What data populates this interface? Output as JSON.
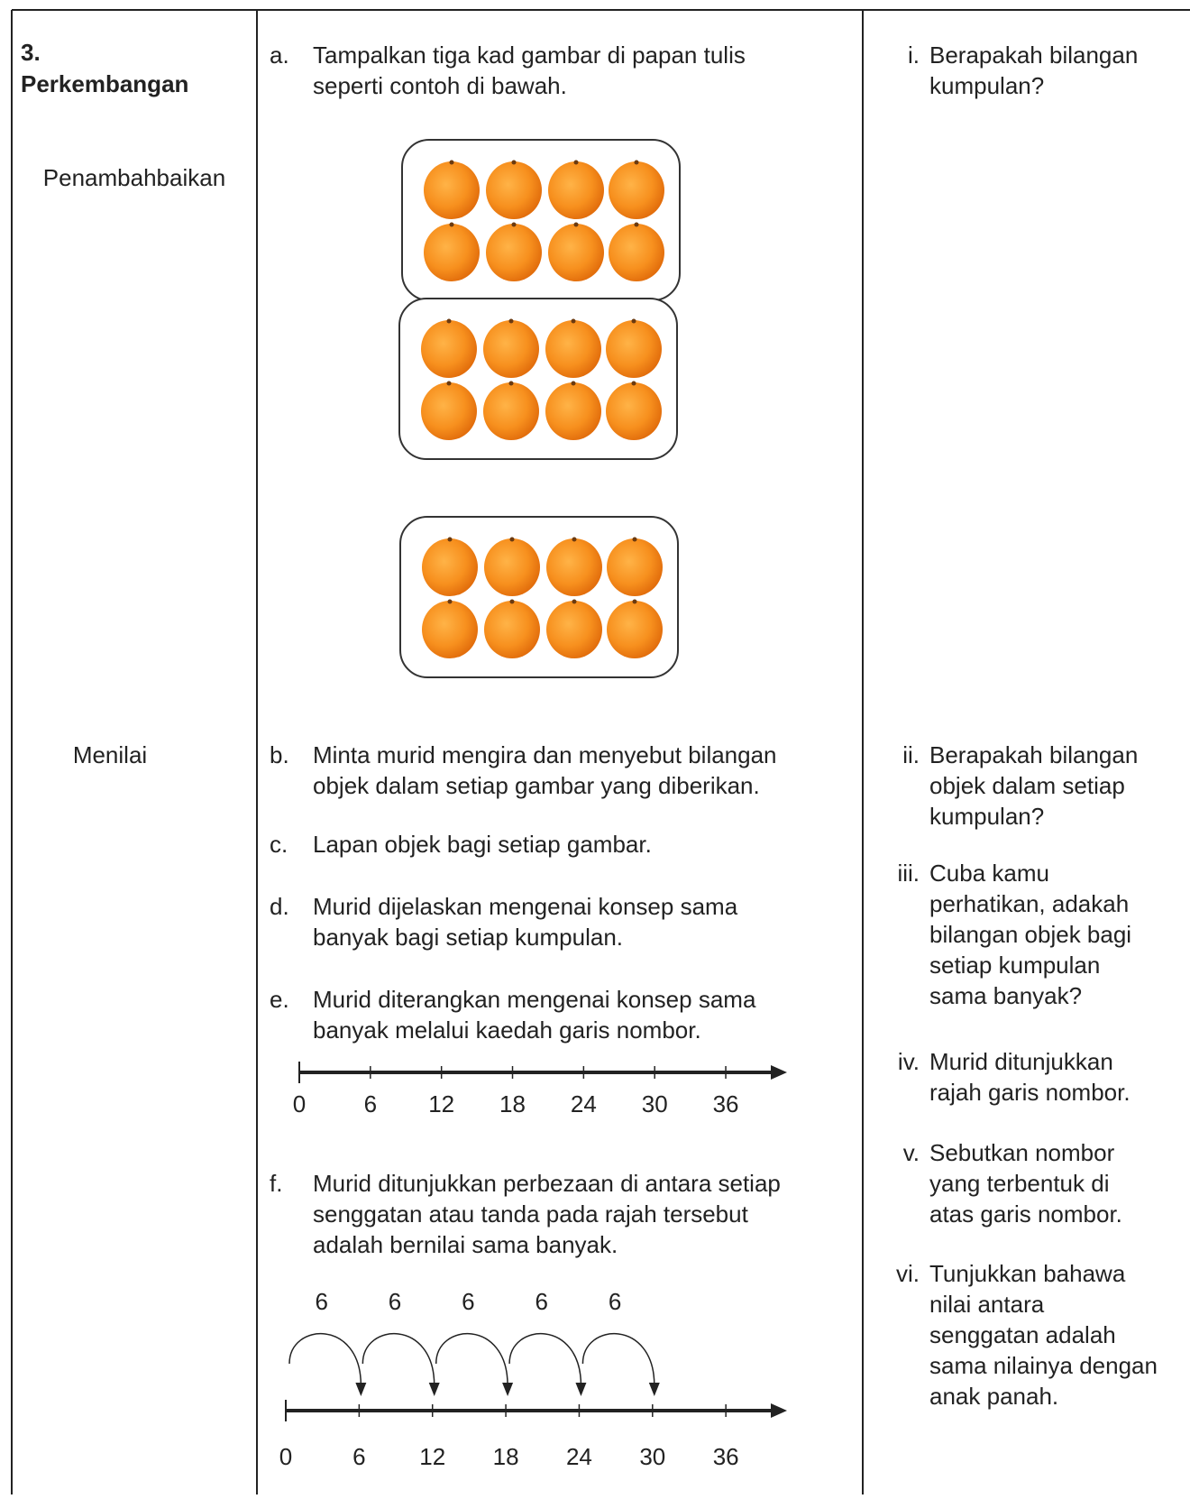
{
  "column_1": {
    "number": "3.",
    "title": "Perkembangan",
    "stage_1": "Penambahbaikan",
    "stage_2": "Menilai"
  },
  "steps": [
    {
      "marker": "a.",
      "lines": [
        "Tampalkan tiga kad gambar di papan tulis",
        "seperti contoh di bawah."
      ]
    },
    {
      "marker": "b.",
      "lines": [
        "Minta murid mengira dan menyebut  bilangan",
        "objek dalam setiap gambar yang diberikan."
      ]
    },
    {
      "marker": "c.",
      "lines": [
        "Lapan objek bagi setiap gambar."
      ]
    },
    {
      "marker": "d.",
      "lines": [
        "Murid dijelaskan mengenai konsep sama",
        "banyak bagi setiap kumpulan."
      ]
    },
    {
      "marker": "e.",
      "lines": [
        "Murid diterangkan mengenai konsep sama",
        "banyak melalui kaedah garis nombor."
      ]
    },
    {
      "marker": "f.",
      "lines": [
        "Murid ditunjukkan perbezaan di antara setiap",
        "senggatan atau tanda pada rajah tersebut",
        "adalah bernilai sama banyak."
      ]
    }
  ],
  "number_line_1": {
    "ticks": [
      0,
      6,
      12,
      18,
      24,
      30,
      36
    ]
  },
  "number_line_2": {
    "ticks": [
      0,
      6,
      12,
      18,
      24,
      30,
      36
    ],
    "jump_labels": [
      6,
      6,
      6,
      6,
      6
    ]
  },
  "questions": [
    {
      "marker": "i.",
      "lines": [
        "Berapakah bilangan",
        "kumpulan?"
      ]
    },
    {
      "marker": "ii.",
      "lines": [
        "Berapakah bilangan",
        "objek dalam setiap",
        "kumpulan?"
      ]
    },
    {
      "marker": "iii.",
      "lines": [
        "Cuba kamu",
        "perhatikan, adakah",
        "bilangan objek bagi",
        "setiap kumpulan",
        "sama banyak?"
      ]
    },
    {
      "marker": "iv.",
      "lines": [
        "Murid ditunjukkan",
        "rajah garis nombor."
      ]
    },
    {
      "marker": "v.",
      "lines": [
        "Sebutkan nombor",
        "yang terbentuk di",
        "atas garis nombor."
      ]
    },
    {
      "marker": "vi.",
      "lines": [
        "Tunjukkan bahawa",
        "nilai antara",
        "senggatan adalah",
        "sama nilainya dengan",
        "anak panah."
      ]
    }
  ]
}
